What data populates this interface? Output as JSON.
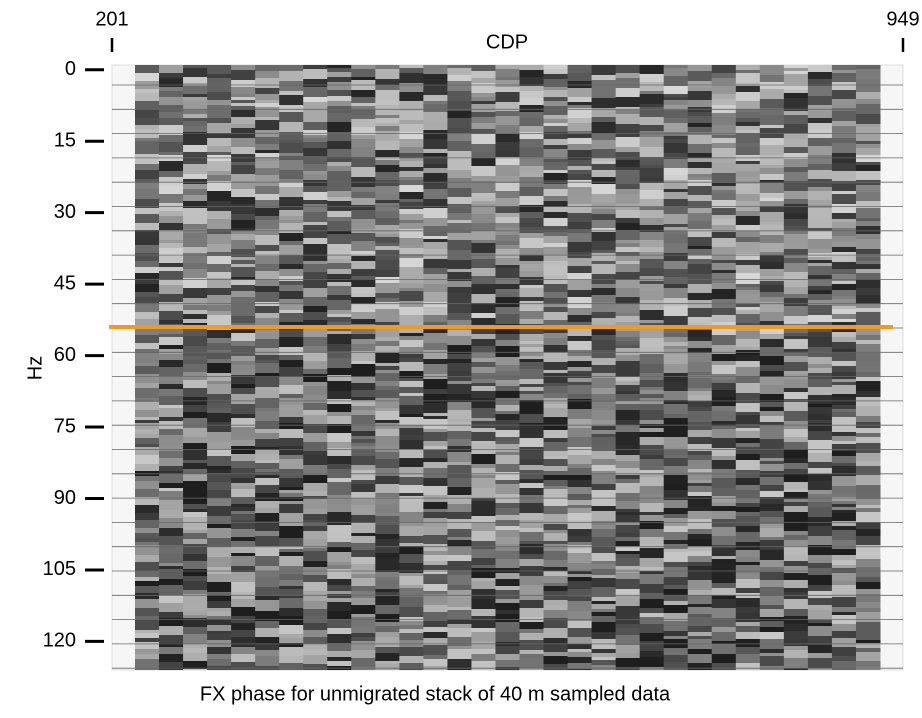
{
  "chart_data": {
    "type": "image",
    "title": "CDP",
    "caption": "FX phase for unmigrated stack of 40 m sampled data",
    "y_label": "Hz",
    "xlim": [
      201,
      949
    ],
    "xticks": [
      201,
      949
    ],
    "ylim": [
      -1,
      126
    ],
    "yticks": [
      0,
      15,
      30,
      45,
      60,
      75,
      90,
      105,
      120
    ],
    "hline": 54,
    "hline_color": "#f39a1e"
  }
}
